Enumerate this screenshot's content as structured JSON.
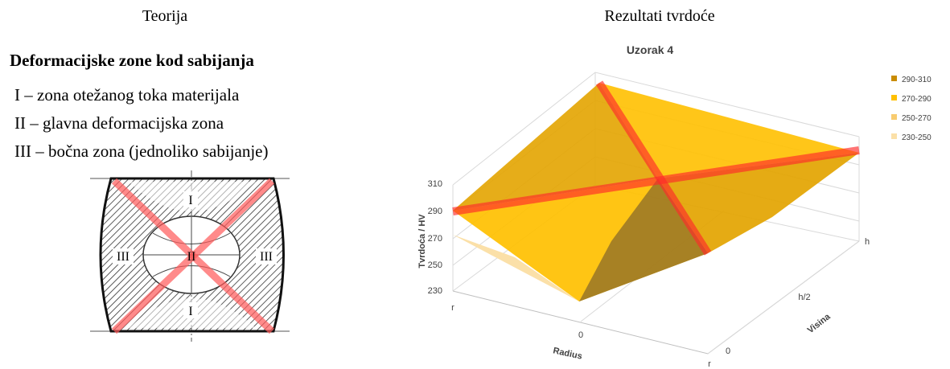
{
  "left": {
    "title": "Teorija",
    "heading": "Deformacijske zone kod sabijanja",
    "items": [
      "I – zona otežanog toka materijala",
      "II – glavna deformacijska zona",
      "III – bočna zona (jednoliko sabijanje)"
    ],
    "diagram": {
      "labels": [
        "I",
        "III",
        "II",
        "III",
        "I"
      ]
    }
  },
  "right": {
    "title": "Rezultati tvrdoće",
    "chart": {
      "title": "Uzorak 4",
      "legend": [
        "290-310",
        "270-290",
        "250-270",
        "230-250"
      ],
      "y_axis_title": "Tvrdoća / HV",
      "y_ticks": [
        "310",
        "290",
        "270",
        "250",
        "230"
      ],
      "x_axis_title": "Radius",
      "x_ticks": [
        "r",
        "0",
        "r"
      ],
      "depth_axis_title": "Visina",
      "depth_ticks": [
        "0",
        "h/2",
        "h"
      ]
    }
  }
}
